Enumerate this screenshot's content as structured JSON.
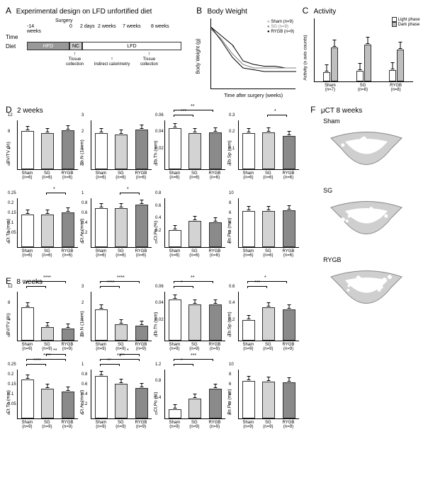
{
  "colors": {
    "sham": "#ffffff",
    "sg": "#d3d3d3",
    "rygb": "#8a8a8a",
    "light": "#ffffff",
    "dark": "#bfbfbf",
    "axis": "#000000",
    "grid": "#e0e0e0"
  },
  "panelA": {
    "label": "A",
    "title": "Experimental design on LFD unfortified diet",
    "rows": {
      "time": {
        "label": "Time",
        "marks": [
          "-14 weeks",
          "0",
          "2 days",
          "2 weeks",
          "7 weeks",
          "8 weeks"
        ]
      },
      "diet": {
        "label": "Diet",
        "segments": [
          {
            "name": "HFD",
            "width": 60,
            "bg": "#999999",
            "fg": "#ffffff"
          },
          {
            "name": "NC",
            "width": 18,
            "bg": "#cccccc",
            "fg": "#000000"
          },
          {
            "name": "LFD",
            "width": 140,
            "bg": "#ffffff",
            "fg": "#000000"
          }
        ]
      },
      "events": {
        "surgery": "Surgery",
        "tissue1": "Tissue\ncollection",
        "tissue2": "Tissue\ncollection",
        "calorimetry": "Indirect\ncalorimetry"
      }
    }
  },
  "panelB": {
    "label": "B",
    "title": "Body Weight",
    "ylabel": "Body Weight (g)",
    "xlabel": "Time after surgery (weeks)",
    "xlim": [
      0,
      8
    ],
    "ylim": [
      10,
      50
    ],
    "yticks": [
      10,
      20,
      30,
      40,
      50
    ],
    "xticks": [
      0,
      2,
      4,
      6,
      8
    ],
    "series": [
      {
        "name": "Sham (n=9)",
        "marker": "open-circle",
        "color": "#000000",
        "y": [
          45,
          40,
          35,
          26,
          24,
          23,
          23,
          22,
          22
        ]
      },
      {
        "name": "SG (n=9)",
        "marker": "gray-circle",
        "color": "#808080",
        "y": [
          44,
          38,
          30,
          24,
          22,
          22,
          22,
          22,
          22
        ]
      },
      {
        "name": "RYGB (n=9)",
        "marker": "filled-circle",
        "color": "#000000",
        "y": [
          45,
          37,
          28,
          22,
          21,
          20,
          20,
          20,
          20
        ]
      }
    ],
    "sig": "*"
  },
  "panelC": {
    "label": "C",
    "title": "Activity",
    "ylabel": "Activity (x axis counts)",
    "ylim": [
      0,
      30000
    ],
    "yticks": [
      0,
      10000,
      20000,
      30000
    ],
    "legend": [
      "Light phase",
      "Dark phase"
    ],
    "groups": [
      {
        "name": "Sham",
        "n": "(n=7)",
        "light": 4500,
        "dark": 16000
      },
      {
        "name": "SG",
        "n": "(n=8)",
        "light": 5000,
        "dark": 17500
      },
      {
        "name": "RYGB",
        "n": "(n=8)",
        "light": 5500,
        "dark": 15000
      }
    ]
  },
  "panelD": {
    "label": "D",
    "title": "2 weeks",
    "n_label": "(n=6)",
    "charts": [
      {
        "ylabel": "BV/TV (%)",
        "ylim": [
          0,
          12
        ],
        "yticks": [
          0,
          4,
          8,
          12
        ],
        "vals": {
          "sham": 9.2,
          "sg": 8.8,
          "rygb": 9.5
        },
        "sig": []
      },
      {
        "ylabel": "Tb.N (1/mm)",
        "ylim": [
          0,
          3
        ],
        "yticks": [
          0,
          1,
          2,
          3
        ],
        "vals": {
          "sham": 2.2,
          "sg": 2.1,
          "rygb": 2.4
        },
        "sig": []
      },
      {
        "ylabel": "Tb.Th (mm)",
        "ylim": [
          0,
          0.06
        ],
        "yticks": [
          0,
          0.02,
          0.04,
          0.06
        ],
        "vals": {
          "sham": 0.05,
          "sg": 0.044,
          "rygb": 0.045
        },
        "sig": [
          {
            "from": "sham",
            "to": "sg",
            "t": "***"
          },
          {
            "from": "sham",
            "to": "rygb",
            "t": "**"
          }
        ]
      },
      {
        "ylabel": "Tb.Sp (mm)",
        "ylim": [
          0,
          0.3
        ],
        "yticks": [
          0,
          0.1,
          0.2,
          0.3
        ],
        "vals": {
          "sham": 0.22,
          "sg": 0.225,
          "rygb": 0.2
        },
        "sig": [
          {
            "from": "sg",
            "to": "rygb",
            "t": "*"
          }
        ]
      },
      {
        "ylabel": "Ct.Th (mm)",
        "ylim": [
          0,
          0.25
        ],
        "yticks": [
          0,
          0.05,
          0.1,
          0.15,
          0.2,
          0.25
        ],
        "vals": {
          "sham": 0.165,
          "sg": 0.165,
          "rygb": 0.175
        },
        "sig": [
          {
            "from": "sg",
            "to": "rygb",
            "t": "*"
          }
        ]
      },
      {
        "ylabel": "Ct.Ar (mm²)",
        "ylim": [
          0,
          1.0
        ],
        "yticks": [
          0,
          0.2,
          0.4,
          0.6,
          0.8,
          1.0
        ],
        "vals": {
          "sham": 0.79,
          "sg": 0.78,
          "rygb": 0.86
        },
        "sig": [
          {
            "from": "sg",
            "to": "rygb",
            "t": "*"
          }
        ]
      },
      {
        "ylabel": "Ct.Po (%)",
        "ylim": [
          0,
          0.8
        ],
        "yticks": [
          0,
          0.2,
          0.4,
          0.6,
          0.8
        ],
        "vals": {
          "sham": 0.28,
          "sg": 0.42,
          "rygb": 0.4
        },
        "sig": []
      },
      {
        "ylabel": "Ps.Pm (mm)",
        "ylim": [
          0,
          10
        ],
        "yticks": [
          0,
          2,
          4,
          6,
          8,
          10
        ],
        "vals": {
          "sham": 7.3,
          "sg": 7.3,
          "rygb": 7.4
        },
        "sig": []
      }
    ]
  },
  "panelE": {
    "label": "E",
    "title": "8 weeks",
    "n_label": "(n=9)",
    "charts": [
      {
        "ylabel": "BV/TV (%)",
        "ylim": [
          0,
          12
        ],
        "yticks": [
          0,
          4,
          8,
          12
        ],
        "vals": {
          "sham": 8.0,
          "sg": 3.2,
          "rygb": 3.0
        },
        "sig": [
          {
            "from": "sham",
            "to": "sg",
            "t": "****"
          },
          {
            "from": "sham",
            "to": "rygb",
            "t": "****"
          }
        ]
      },
      {
        "ylabel": "Tb.N (1/mm)",
        "ylim": [
          0,
          3
        ],
        "yticks": [
          0,
          1,
          2,
          3
        ],
        "vals": {
          "sham": 1.9,
          "sg": 1.0,
          "rygb": 0.9
        },
        "sig": [
          {
            "from": "sham",
            "to": "sg",
            "t": "****"
          },
          {
            "from": "sham",
            "to": "rygb",
            "t": "****"
          }
        ]
      },
      {
        "ylabel": "Tb.Th (mm)",
        "ylim": [
          0,
          0.06
        ],
        "yticks": [
          0,
          0.02,
          0.04,
          0.06
        ],
        "vals": {
          "sham": 0.05,
          "sg": 0.044,
          "rygb": 0.044
        },
        "sig": [
          {
            "from": "sham",
            "to": "sg",
            "t": "*"
          },
          {
            "from": "sham",
            "to": "rygb",
            "t": "**"
          }
        ]
      },
      {
        "ylabel": "Tb.Sp (mm)",
        "ylim": [
          0,
          0.6
        ],
        "yticks": [
          0,
          0.2,
          0.4,
          0.6
        ],
        "vals": {
          "sham": 0.25,
          "sg": 0.4,
          "rygb": 0.38
        },
        "sig": [
          {
            "from": "sham",
            "to": "sg",
            "t": "***"
          },
          {
            "from": "sham",
            "to": "rygb",
            "t": "*"
          }
        ]
      },
      {
        "ylabel": "Ct.Th (mm)",
        "ylim": [
          0,
          0.25
        ],
        "yticks": [
          0,
          0.05,
          0.1,
          0.15,
          0.2,
          0.25
        ],
        "vals": {
          "sham": 0.195,
          "sg": 0.15,
          "rygb": 0.135
        },
        "sig": [
          {
            "from": "sham",
            "to": "sg",
            "t": "****"
          },
          {
            "from": "sham",
            "to": "rygb",
            "t": "****"
          },
          {
            "from": "sg",
            "to": "rygb",
            "t": "**"
          }
        ]
      },
      {
        "ylabel": "Ct.Ar (mm²)",
        "ylim": [
          0,
          1.0
        ],
        "yticks": [
          0,
          0.2,
          0.4,
          0.6,
          0.8,
          1.0
        ],
        "vals": {
          "sham": 0.86,
          "sg": 0.7,
          "rygb": 0.62
        },
        "sig": [
          {
            "from": "sham",
            "to": "sg",
            "t": "**"
          },
          {
            "from": "sham",
            "to": "rygb",
            "t": "****"
          },
          {
            "from": "sg",
            "to": "rygb",
            "t": "*"
          }
        ]
      },
      {
        "ylabel": "Ct.Po (%)",
        "ylim": [
          0,
          1.2
        ],
        "yticks": [
          0,
          0.4,
          0.8,
          1.2
        ],
        "vals": {
          "sham": 0.22,
          "sg": 0.48,
          "rygb": 0.72
        },
        "sig": [
          {
            "from": "sham",
            "to": "sg",
            "t": "*"
          },
          {
            "from": "sham",
            "to": "rygb",
            "t": "***"
          }
        ]
      },
      {
        "ylabel": "Ps.Pm (mm)",
        "ylim": [
          0,
          10
        ],
        "yticks": [
          0,
          2,
          4,
          6,
          8,
          10
        ],
        "vals": {
          "sham": 7.6,
          "sg": 7.4,
          "rygb": 7.3
        },
        "sig": []
      }
    ]
  },
  "panelF": {
    "label": "F",
    "title": "μCT 8 weeks",
    "items": [
      "Sham",
      "SG",
      "RYGB"
    ]
  },
  "xlabels3": [
    "Sham",
    "SG",
    "RYGB"
  ]
}
